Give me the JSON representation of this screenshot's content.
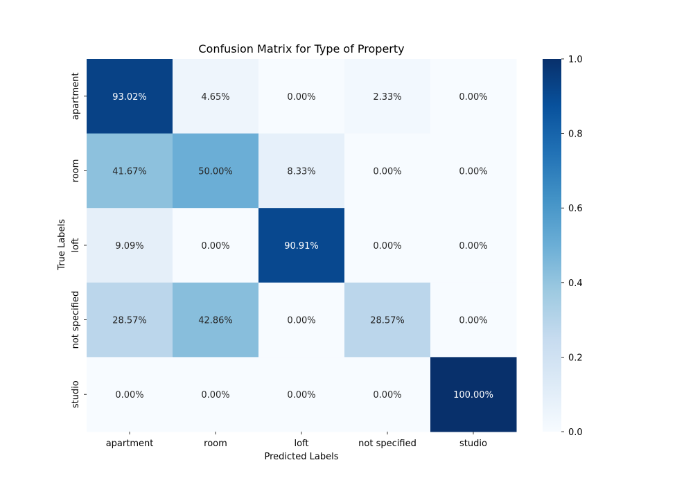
{
  "chart_data": {
    "type": "heatmap",
    "title": "Confusion Matrix for Type of Property",
    "xlabel": "Predicted Labels",
    "ylabel": "True Labels",
    "x_categories": [
      "apartment",
      "room",
      "loft",
      "not specified",
      "studio"
    ],
    "y_categories": [
      "apartment",
      "room",
      "loft",
      "not specified",
      "studio"
    ],
    "values": [
      [
        0.9302,
        0.0465,
        0.0,
        0.0233,
        0.0
      ],
      [
        0.4167,
        0.5,
        0.0833,
        0.0,
        0.0
      ],
      [
        0.0909,
        0.0,
        0.9091,
        0.0,
        0.0
      ],
      [
        0.2857,
        0.4286,
        0.0,
        0.2857,
        0.0
      ],
      [
        0.0,
        0.0,
        0.0,
        0.0,
        1.0
      ]
    ],
    "cell_labels": [
      [
        "93.02%",
        "4.65%",
        "0.00%",
        "2.33%",
        "0.00%"
      ],
      [
        "41.67%",
        "50.00%",
        "8.33%",
        "0.00%",
        "0.00%"
      ],
      [
        "9.09%",
        "0.00%",
        "90.91%",
        "0.00%",
        "0.00%"
      ],
      [
        "28.57%",
        "42.86%",
        "0.00%",
        "28.57%",
        "0.00%"
      ],
      [
        "0.00%",
        "0.00%",
        "0.00%",
        "0.00%",
        "100.00%"
      ]
    ],
    "colorbar": {
      "range": [
        0,
        1
      ],
      "ticks": [
        0.0,
        0.2,
        0.4,
        0.6,
        0.8,
        1.0
      ],
      "tick_labels": [
        "0.0",
        "0.2",
        "0.4",
        "0.6",
        "0.8",
        "1.0"
      ]
    },
    "colormap": "Blues"
  }
}
